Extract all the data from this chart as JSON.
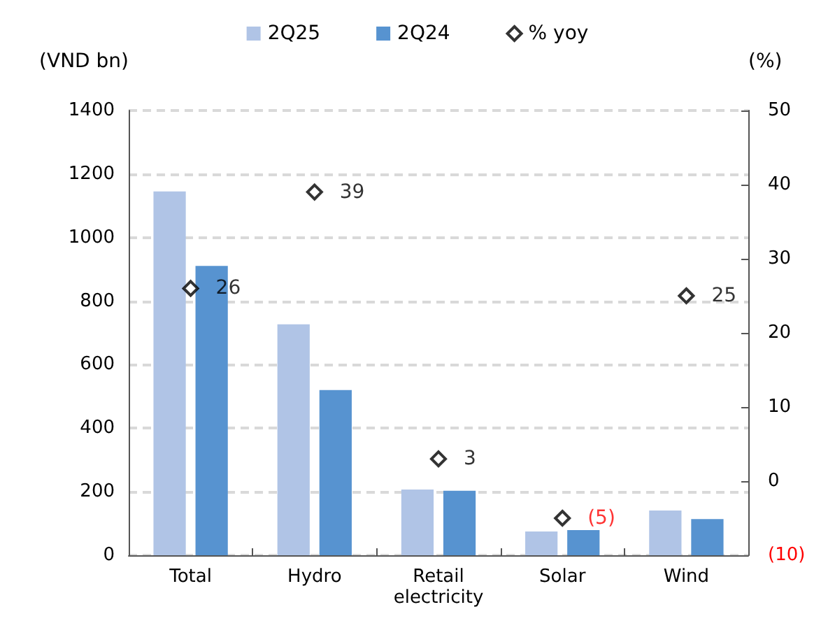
{
  "chart_data": {
    "type": "bar",
    "categories": [
      "Total",
      "Hydro",
      "Retail\nelectricity",
      "Solar",
      "Wind"
    ],
    "ylabel": "(VND bn)",
    "y2label": "(%)",
    "series": [
      {
        "name": "2Q25",
        "color": "#b0c4e6",
        "values": [
          1145,
          727,
          207,
          75,
          141
        ]
      },
      {
        "name": "2Q24",
        "color": "#5793d0",
        "values": [
          911,
          520,
          203,
          79,
          114
        ]
      },
      {
        "name": "% yoy",
        "type": "scatter",
        "axis": "y2",
        "marker": "diamond",
        "color": "#000000",
        "values": [
          26,
          39,
          3,
          -5,
          25
        ],
        "value_labels": [
          "26",
          "39",
          "3",
          "(5)",
          "25"
        ]
      }
    ],
    "ylim": [
      0,
      1400
    ],
    "yticks": [
      0,
      200,
      400,
      600,
      800,
      1000,
      1200,
      1400
    ],
    "y2lim": [
      -10,
      50
    ],
    "y2ticks": [
      {
        "value": -10,
        "label": "(10)"
      },
      0,
      10,
      20,
      30,
      40,
      50
    ],
    "grid": "y",
    "legend": "top"
  }
}
